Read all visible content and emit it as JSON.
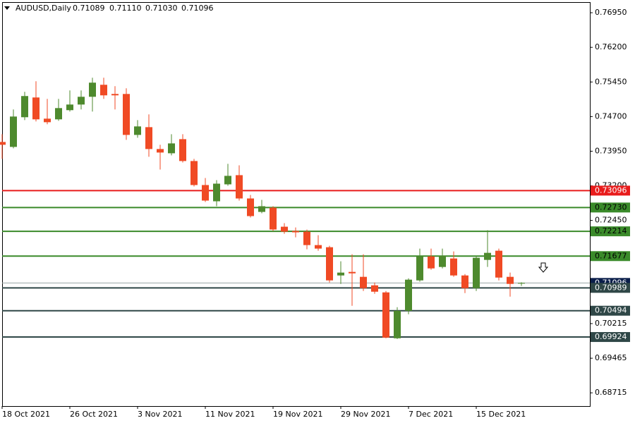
{
  "chart_data": {
    "type": "candlestick",
    "title": "AUDUSD,Daily",
    "header_values": [
      "0.71089",
      "0.71110",
      "0.71030",
      "0.71096"
    ],
    "categories": [
      "18 Oct 2021",
      null,
      null,
      null,
      null,
      null,
      "26 Oct 2021",
      null,
      null,
      null,
      null,
      null,
      "3 Nov 2021",
      null,
      null,
      null,
      null,
      null,
      "11 Nov 2021",
      null,
      null,
      null,
      null,
      null,
      "19 Nov 2021",
      null,
      null,
      null,
      null,
      null,
      "29 Nov 2021",
      null,
      null,
      null,
      null,
      null,
      "7 Dec 2021",
      null,
      null,
      null,
      null,
      null,
      "15 Dec 2021",
      null,
      null,
      null,
      null
    ],
    "open": [
      0.7415,
      0.74043,
      0.74686,
      0.75114,
      0.74655,
      0.7464,
      0.74839,
      0.74961,
      0.75129,
      0.75389,
      0.7519,
      0.7519,
      0.74303,
      0.74471,
      0.73997,
      0.73905,
      0.74211,
      0.73737,
      0.73217,
      0.72865,
      0.73232,
      0.73431,
      0.72926,
      0.72635,
      0.72727,
      0.72314,
      0.72222,
      0.72207,
      0.71916,
      0.7187,
      0.71258,
      0.71335,
      0.71228,
      0.71044,
      0.70891,
      0.69897,
      0.70493,
      0.71151,
      0.71671,
      0.71442,
      0.71626,
      0.71258,
      0.70983,
      0.71595,
      0.71794,
      0.71228,
      0.71089
    ],
    "high": [
      0.74318,
      0.74854,
      0.75236,
      0.75466,
      0.75083,
      0.75083,
      0.75267,
      0.75267,
      0.75542,
      0.75542,
      0.75359,
      0.75313,
      0.74624,
      0.74747,
      0.74089,
      0.74318,
      0.74318,
      0.73783,
      0.7337,
      0.73324,
      0.73676,
      0.73645,
      0.73003,
      0.72895,
      0.72758,
      0.72391,
      0.72299,
      0.72253,
      0.7213,
      0.71901,
      0.71564,
      0.71717,
      0.71717,
      0.71105,
      0.70922,
      0.7057,
      0.71197,
      0.7184,
      0.7184,
      0.7184,
      0.71779,
      0.71289,
      0.71687,
      0.72238,
      0.7184,
      0.7132,
      0.7111
    ],
    "low": [
      0.73783,
      0.74012,
      0.74624,
      0.74594,
      0.74533,
      0.74609,
      0.74808,
      0.74854,
      0.74808,
      0.75083,
      0.74854,
      0.74196,
      0.74242,
      0.73829,
      0.73553,
      0.73859,
      0.73706,
      0.73186,
      0.7285,
      0.72758,
      0.73201,
      0.7288,
      0.72513,
      0.72605,
      0.72222,
      0.72161,
      0.72085,
      0.71824,
      0.71794,
      0.71105,
      0.71075,
      0.706,
      0.70922,
      0.70861,
      0.69897,
      0.69881,
      0.70417,
      0.71121,
      0.71381,
      0.71411,
      0.71228,
      0.70876,
      0.70922,
      0.71442,
      0.71151,
      0.70799,
      0.7103
    ],
    "close": [
      0.74089,
      0.74701,
      0.75145,
      0.7464,
      0.74578,
      0.74884,
      0.74961,
      0.75129,
      0.75435,
      0.7516,
      0.7516,
      0.74303,
      0.74487,
      0.73997,
      0.73921,
      0.74119,
      0.73737,
      0.73217,
      0.7288,
      0.73247,
      0.73416,
      0.72926,
      0.72544,
      0.72758,
      0.72253,
      0.72207,
      0.72192,
      0.71916,
      0.7184,
      0.71151,
      0.7132,
      0.71304,
      0.70983,
      0.70906,
      0.69912,
      0.70493,
      0.71167,
      0.71671,
      0.71411,
      0.71687,
      0.71258,
      0.70983,
      0.71641,
      0.71748,
      0.71212,
      0.71075,
      0.71096
    ],
    "up_color": "#4e8a2e",
    "down_color": "#f04a24",
    "ylim": [
      0.68428,
      0.7718
    ],
    "yticks": [
      {
        "value": 0.7695,
        "label": "0.76950"
      },
      {
        "value": 0.762,
        "label": "0.76200"
      },
      {
        "value": 0.7545,
        "label": "0.75450"
      },
      {
        "value": 0.747,
        "label": "0.74700"
      },
      {
        "value": 0.7395,
        "label": "0.73950"
      },
      {
        "value": 0.732,
        "label": "0.73200"
      },
      {
        "value": 0.7245,
        "label": "0.72450"
      },
      {
        "value": 0.70215,
        "label": "0.70215"
      },
      {
        "value": 0.69465,
        "label": "0.69465"
      },
      {
        "value": 0.68715,
        "label": "0.68715"
      }
    ],
    "current_price": {
      "value": 0.71096,
      "label": "0.71096",
      "color": "#9aa6a6",
      "label_color": "#0a1e4a"
    },
    "levels": [
      {
        "value": 0.73096,
        "label": "0.73096",
        "color": "#e81c1c",
        "text_color": "#ffffff"
      },
      {
        "value": 0.7273,
        "label": "0.72730",
        "color": "#3a8a2a",
        "text_color": "#000000"
      },
      {
        "value": 0.72214,
        "label": "0.72214",
        "color": "#3a8a2a",
        "text_color": "#000000"
      },
      {
        "value": 0.71677,
        "label": "0.71677",
        "color": "#3a8a2a",
        "text_color": "#000000"
      },
      {
        "value": 0.70989,
        "label": "0.70989",
        "color": "#2f4747",
        "text_color": "#ffffff"
      },
      {
        "value": 0.70494,
        "label": "0.70494",
        "color": "#2f4747",
        "text_color": "#ffffff"
      },
      {
        "value": 0.69924,
        "label": "0.69924",
        "color": "#2f4747",
        "text_color": "#ffffff"
      }
    ]
  }
}
